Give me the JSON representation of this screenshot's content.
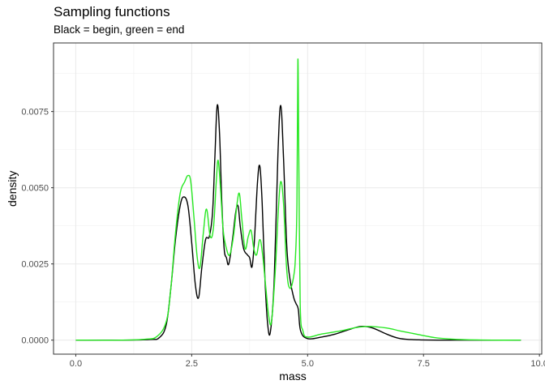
{
  "chart_data": {
    "type": "line",
    "title": "Sampling functions",
    "subtitle": "Black = begin, green = end",
    "xlabel": "mass",
    "ylabel": "density",
    "xlim": [
      -0.48,
      10.05
    ],
    "ylim": [
      -0.00046,
      0.00975
    ],
    "x_ticks": [
      0,
      2.5,
      5,
      7.5,
      10
    ],
    "x_tick_labels": [
      "0.0",
      "2.5",
      "5.0",
      "7.5",
      "10.0"
    ],
    "y_ticks": [
      0,
      0.0025,
      0.005,
      0.0075
    ],
    "y_tick_labels": [
      "0.0000",
      "0.0025",
      "0.0050",
      "0.0075"
    ],
    "grid": true,
    "series": [
      {
        "color": "#000000",
        "x": [
          0,
          1.0,
          1.6,
          1.8,
          1.95,
          2.05,
          2.15,
          2.25,
          2.33,
          2.42,
          2.5,
          2.58,
          2.65,
          2.72,
          2.8,
          2.88,
          2.95,
          3.0,
          3.05,
          3.1,
          3.15,
          3.2,
          3.25,
          3.3,
          3.38,
          3.45,
          3.5,
          3.55,
          3.62,
          3.7,
          3.75,
          3.8,
          3.85,
          3.92,
          3.97,
          4.02,
          4.08,
          4.14,
          4.2,
          4.28,
          4.36,
          4.42,
          4.48,
          4.55,
          4.62,
          4.7,
          4.75,
          4.8,
          4.85,
          5.0,
          5.3,
          5.6,
          5.9,
          6.15,
          6.4,
          6.7,
          7.0,
          7.4,
          8.0,
          9.0,
          9.6
        ],
        "y": [
          0,
          0,
          2e-05,
          8e-05,
          0.0005,
          0.0017,
          0.0033,
          0.0044,
          0.0047,
          0.0044,
          0.0032,
          0.0018,
          0.0014,
          0.0024,
          0.0033,
          0.0034,
          0.0042,
          0.006,
          0.0077,
          0.0068,
          0.0045,
          0.003,
          0.0027,
          0.0025,
          0.0033,
          0.0042,
          0.0044,
          0.0037,
          0.003,
          0.0028,
          0.0027,
          0.0024,
          0.0032,
          0.0052,
          0.0057,
          0.0045,
          0.002,
          0.0005,
          0.0003,
          0.002,
          0.0061,
          0.0077,
          0.006,
          0.0031,
          0.002,
          0.0014,
          0.0012,
          0.001,
          0.0003,
          5e-05,
          0.0001,
          0.0002,
          0.00035,
          0.00045,
          0.0004,
          0.0002,
          5e-05,
          1e-05,
          0,
          0,
          0
        ]
      },
      {
        "color": "#27e822",
        "x": [
          0,
          1.0,
          1.5,
          1.75,
          1.95,
          2.05,
          2.15,
          2.25,
          2.35,
          2.42,
          2.48,
          2.55,
          2.62,
          2.68,
          2.75,
          2.82,
          2.9,
          2.97,
          3.03,
          3.07,
          3.12,
          3.18,
          3.25,
          3.32,
          3.4,
          3.48,
          3.53,
          3.58,
          3.65,
          3.72,
          3.78,
          3.84,
          3.9,
          3.97,
          4.03,
          4.1,
          4.16,
          4.22,
          4.3,
          4.37,
          4.42,
          4.48,
          4.55,
          4.62,
          4.7,
          4.74,
          4.77,
          4.79,
          4.81,
          4.84,
          4.9,
          5.0,
          5.3,
          5.7,
          6.0,
          6.3,
          6.7,
          7.0,
          7.4,
          7.8,
          8.3,
          9.0,
          9.6
        ],
        "y": [
          0,
          0,
          3e-05,
          0.00012,
          0.0006,
          0.0017,
          0.0035,
          0.0048,
          0.0052,
          0.0054,
          0.0052,
          0.004,
          0.0027,
          0.0024,
          0.0035,
          0.0043,
          0.0034,
          0.0037,
          0.0052,
          0.0059,
          0.005,
          0.0036,
          0.003,
          0.0028,
          0.0034,
          0.0045,
          0.0048,
          0.004,
          0.003,
          0.0034,
          0.0036,
          0.003,
          0.0028,
          0.0033,
          0.0028,
          0.0017,
          0.0008,
          0.0006,
          0.0022,
          0.0043,
          0.0052,
          0.0045,
          0.0023,
          0.0017,
          0.0021,
          0.0028,
          0.0045,
          0.0092,
          0.006,
          0.0012,
          0.0003,
          0.0001,
          0.0002,
          0.0003,
          0.0004,
          0.00045,
          0.0004,
          0.0003,
          0.00018,
          7e-05,
          2e-05,
          0,
          0
        ]
      }
    ]
  }
}
